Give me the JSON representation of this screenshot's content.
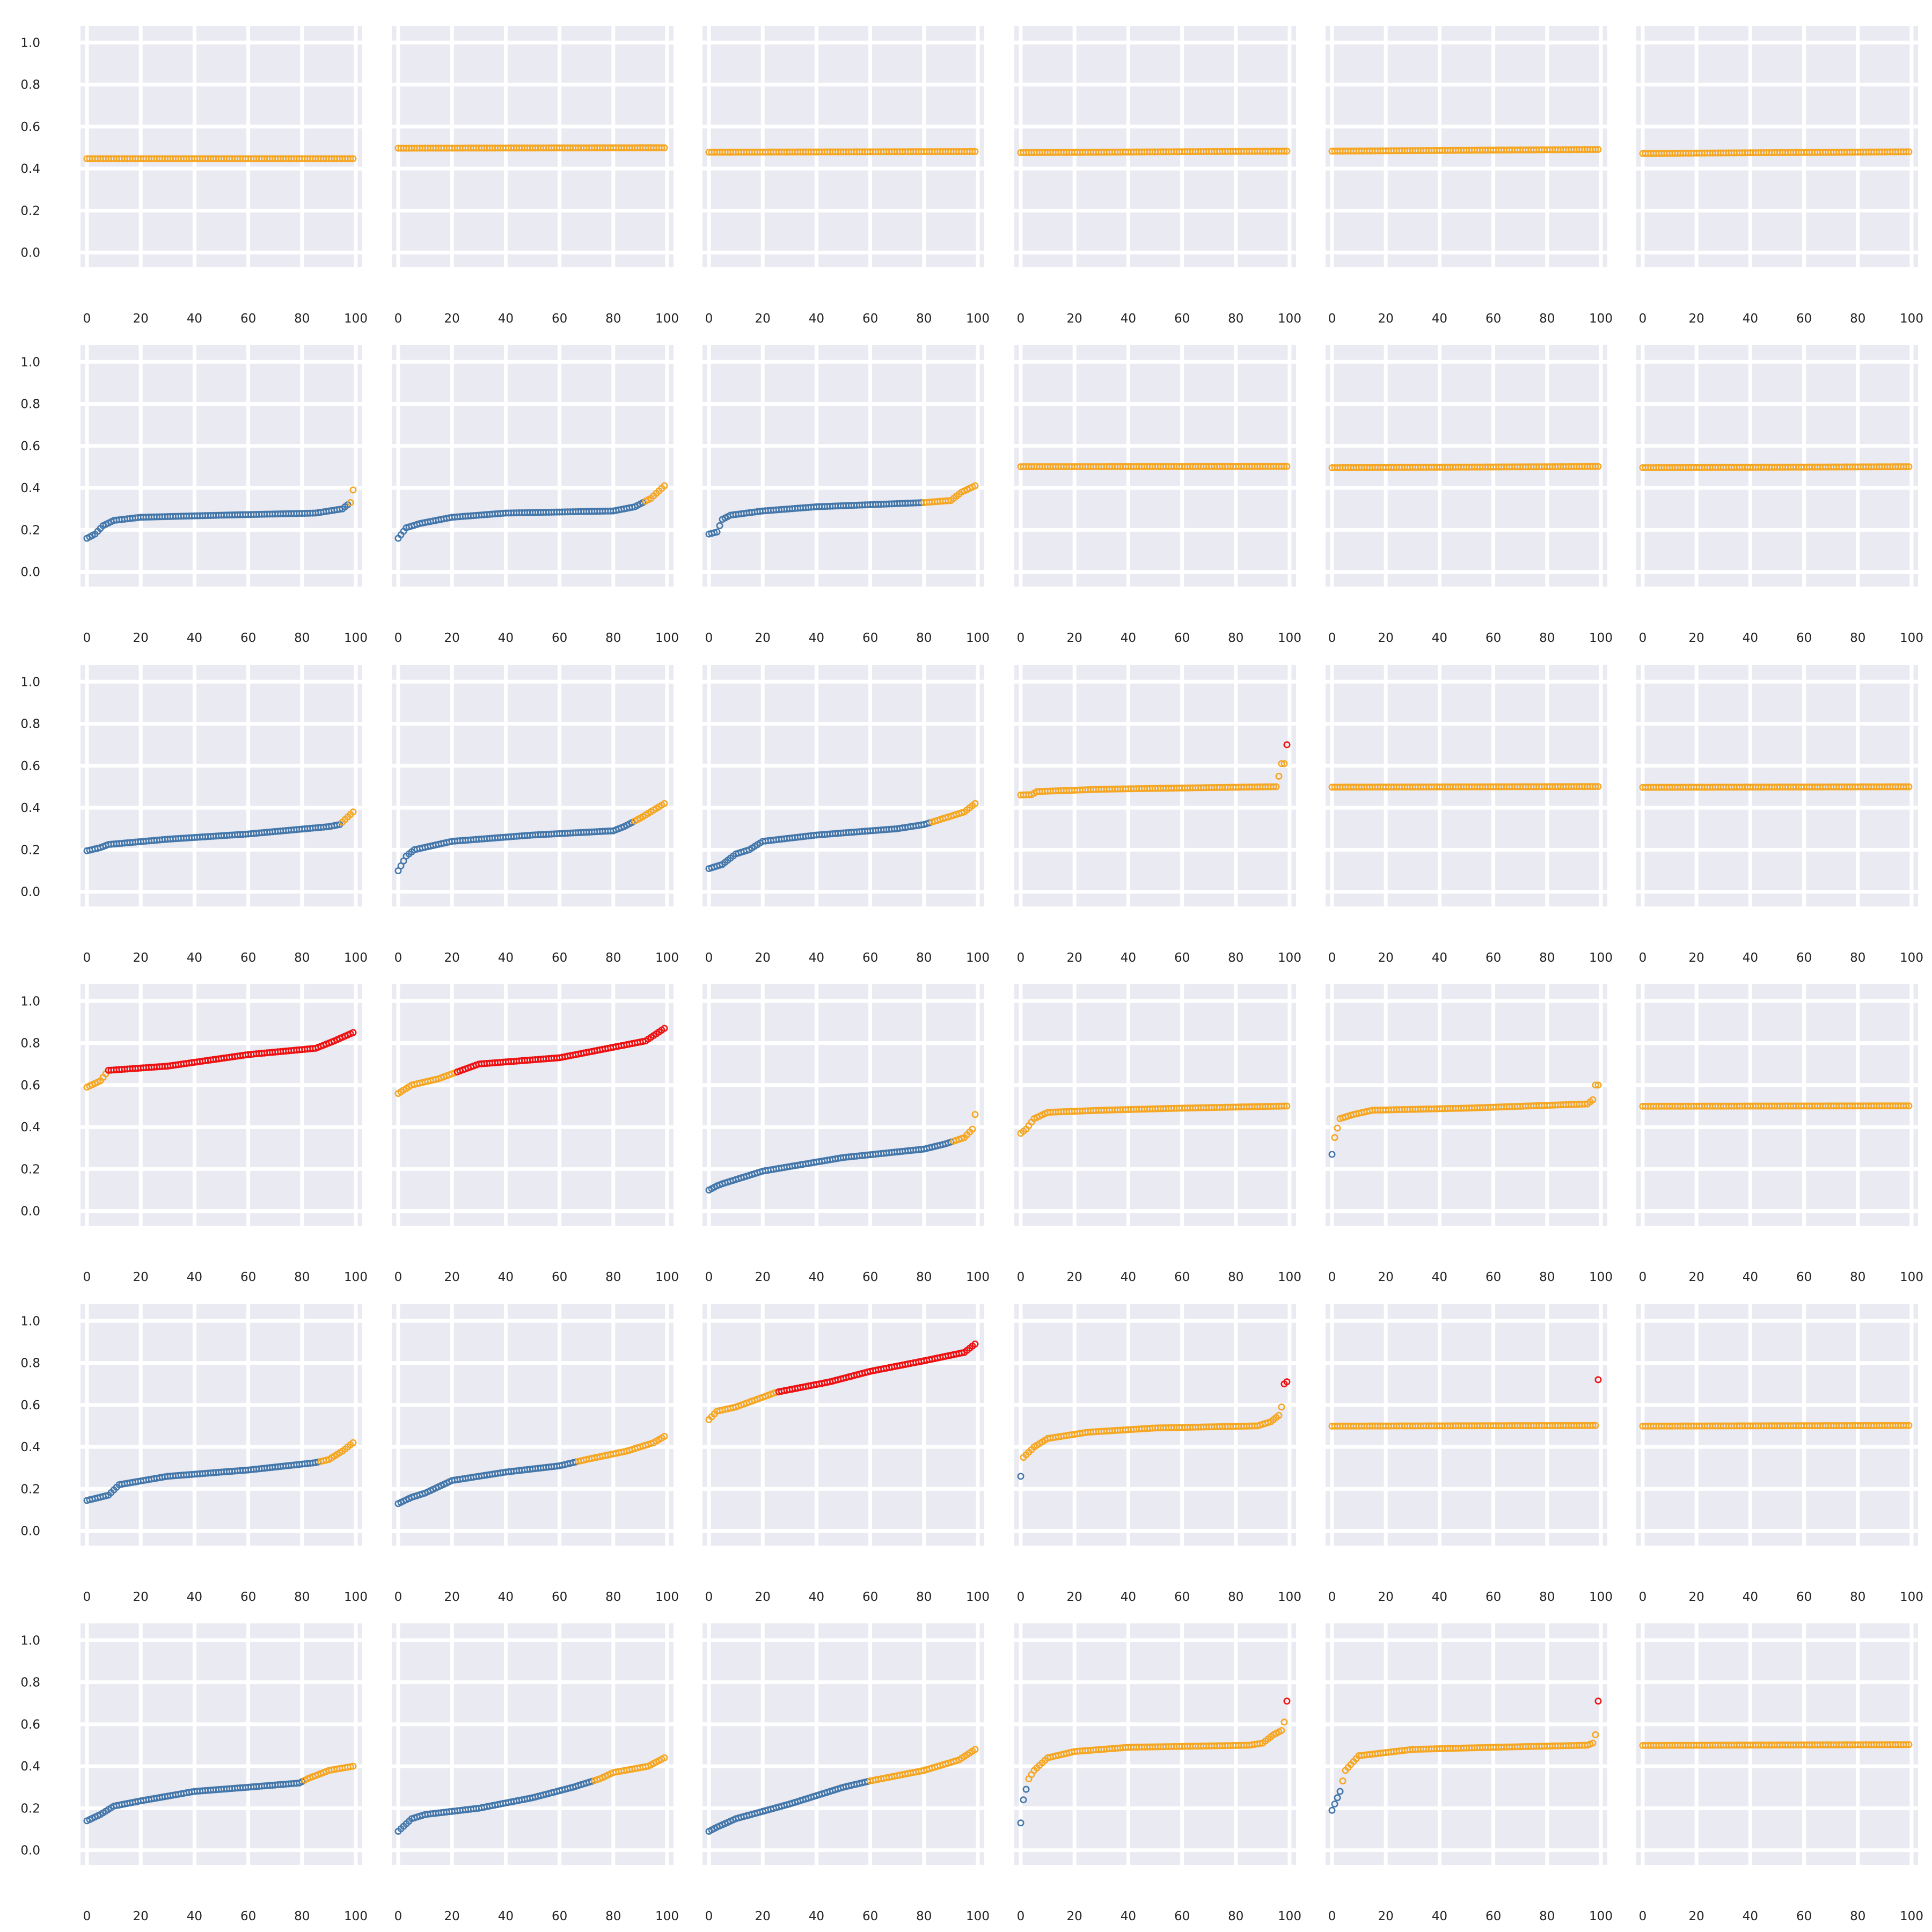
{
  "figure": {
    "rows": 6,
    "cols": 6,
    "colors": {
      "blue": "#4477aa",
      "orange": "#f5a623",
      "red": "#ee1111",
      "panel_bg": "#eaeaf2",
      "grid": "#ffffff"
    }
  },
  "chart_data": {
    "type": "scatter",
    "layout": "6x6 small multiples",
    "x_range": [
      0,
      100
    ],
    "y_range": [
      -0.07,
      1.08
    ],
    "x_ticks": [
      0,
      20,
      40,
      60,
      80,
      100
    ],
    "y_ticks": [
      0.0,
      0.2,
      0.4,
      0.6,
      0.8,
      1.0
    ],
    "y_tick_labels": [
      "0.0",
      "0.2",
      "0.4",
      "0.6",
      "0.8",
      "1.0"
    ],
    "x_tick_labels": [
      "0",
      "20",
      "40",
      "60",
      "80",
      "100"
    ],
    "grid": true,
    "n_points_per_panel": 100,
    "color_rule": "blue below 0.33, orange 0.33–0.66, red above 0.66",
    "panels": [
      {
        "row": 0,
        "col": 0,
        "curve": [
          [
            0,
            0.447
          ],
          [
            100,
            0.447
          ]
        ]
      },
      {
        "row": 0,
        "col": 1,
        "curve": [
          [
            0,
            0.497
          ],
          [
            100,
            0.499
          ]
        ]
      },
      {
        "row": 0,
        "col": 2,
        "curve": [
          [
            0,
            0.478
          ],
          [
            100,
            0.481
          ]
        ]
      },
      {
        "row": 0,
        "col": 3,
        "curve": [
          [
            0,
            0.476
          ],
          [
            100,
            0.483
          ]
        ]
      },
      {
        "row": 0,
        "col": 4,
        "curve": [
          [
            0,
            0.483
          ],
          [
            100,
            0.491
          ]
        ]
      },
      {
        "row": 0,
        "col": 5,
        "curve": [
          [
            0,
            0.472
          ],
          [
            100,
            0.48
          ]
        ]
      },
      {
        "row": 1,
        "col": 0,
        "curve": [
          [
            0,
            0.16
          ],
          [
            3,
            0.18
          ],
          [
            6,
            0.22
          ],
          [
            10,
            0.245
          ],
          [
            20,
            0.26
          ],
          [
            50,
            0.27
          ],
          [
            85,
            0.28
          ],
          [
            95,
            0.3
          ],
          [
            98,
            0.33
          ],
          [
            99,
            0.39
          ]
        ]
      },
      {
        "row": 1,
        "col": 1,
        "curve": [
          [
            0,
            0.16
          ],
          [
            3,
            0.21
          ],
          [
            8,
            0.23
          ],
          [
            20,
            0.26
          ],
          [
            40,
            0.28
          ],
          [
            80,
            0.29
          ],
          [
            88,
            0.31
          ],
          [
            94,
            0.35
          ],
          [
            99,
            0.41
          ]
        ]
      },
      {
        "row": 1,
        "col": 2,
        "curve": [
          [
            0,
            0.18
          ],
          [
            3,
            0.19
          ],
          [
            5,
            0.25
          ],
          [
            8,
            0.27
          ],
          [
            20,
            0.29
          ],
          [
            40,
            0.31
          ],
          [
            80,
            0.33
          ],
          [
            90,
            0.34
          ],
          [
            94,
            0.38
          ],
          [
            99,
            0.41
          ]
        ]
      },
      {
        "row": 1,
        "col": 3,
        "curve": [
          [
            0,
            0.501
          ],
          [
            100,
            0.502
          ]
        ]
      },
      {
        "row": 1,
        "col": 4,
        "curve": [
          [
            0,
            0.496
          ],
          [
            100,
            0.502
          ]
        ]
      },
      {
        "row": 1,
        "col": 5,
        "curve": [
          [
            0,
            0.496
          ],
          [
            100,
            0.501
          ]
        ]
      },
      {
        "row": 2,
        "col": 0,
        "curve": [
          [
            0,
            0.195
          ],
          [
            5,
            0.21
          ],
          [
            8,
            0.225
          ],
          [
            30,
            0.25
          ],
          [
            60,
            0.275
          ],
          [
            90,
            0.31
          ],
          [
            94,
            0.32
          ],
          [
            99,
            0.38
          ]
        ]
      },
      {
        "row": 2,
        "col": 1,
        "curve": [
          [
            0,
            0.1
          ],
          [
            3,
            0.17
          ],
          [
            6,
            0.2
          ],
          [
            20,
            0.24
          ],
          [
            50,
            0.27
          ],
          [
            80,
            0.29
          ],
          [
            84,
            0.31
          ],
          [
            90,
            0.35
          ],
          [
            99,
            0.42
          ]
        ]
      },
      {
        "row": 2,
        "col": 2,
        "curve": [
          [
            0,
            0.11
          ],
          [
            5,
            0.13
          ],
          [
            10,
            0.18
          ],
          [
            15,
            0.2
          ],
          [
            20,
            0.24
          ],
          [
            40,
            0.27
          ],
          [
            70,
            0.3
          ],
          [
            80,
            0.32
          ],
          [
            85,
            0.34
          ],
          [
            95,
            0.38
          ],
          [
            99,
            0.42
          ]
        ]
      },
      {
        "row": 2,
        "col": 3,
        "curve": [
          [
            0,
            0.461
          ],
          [
            4,
            0.462
          ],
          [
            6,
            0.477
          ],
          [
            30,
            0.488
          ],
          [
            60,
            0.494
          ],
          [
            94,
            0.5
          ],
          [
            95,
            0.5
          ],
          [
            96,
            0.55
          ],
          [
            97,
            0.61
          ],
          [
            98,
            0.61
          ],
          [
            99,
            0.7
          ]
        ]
      },
      {
        "row": 2,
        "col": 4,
        "curve": [
          [
            0,
            0.498
          ],
          [
            100,
            0.501
          ]
        ]
      },
      {
        "row": 2,
        "col": 5,
        "curve": [
          [
            0,
            0.497
          ],
          [
            100,
            0.5
          ]
        ]
      },
      {
        "row": 3,
        "col": 0,
        "curve": [
          [
            0,
            0.59
          ],
          [
            5,
            0.62
          ],
          [
            8,
            0.67
          ],
          [
            30,
            0.69
          ],
          [
            60,
            0.745
          ],
          [
            85,
            0.775
          ],
          [
            92,
            0.81
          ],
          [
            99,
            0.85
          ]
        ]
      },
      {
        "row": 3,
        "col": 1,
        "curve": [
          [
            0,
            0.56
          ],
          [
            5,
            0.6
          ],
          [
            15,
            0.63
          ],
          [
            30,
            0.7
          ],
          [
            60,
            0.73
          ],
          [
            80,
            0.78
          ],
          [
            92,
            0.81
          ],
          [
            99,
            0.87
          ]
        ]
      },
      {
        "row": 3,
        "col": 2,
        "curve": [
          [
            0,
            0.1
          ],
          [
            3,
            0.12
          ],
          [
            5,
            0.13
          ],
          [
            20,
            0.19
          ],
          [
            50,
            0.255
          ],
          [
            80,
            0.295
          ],
          [
            88,
            0.32
          ],
          [
            95,
            0.35
          ],
          [
            98,
            0.39
          ],
          [
            99,
            0.46
          ]
        ]
      },
      {
        "row": 3,
        "col": 3,
        "curve": [
          [
            0,
            0.37
          ],
          [
            2,
            0.39
          ],
          [
            5,
            0.44
          ],
          [
            10,
            0.47
          ],
          [
            30,
            0.48
          ],
          [
            60,
            0.49
          ],
          [
            99,
            0.5
          ]
        ]
      },
      {
        "row": 3,
        "col": 4,
        "curve": [
          [
            0,
            0.27
          ],
          [
            1,
            0.35
          ],
          [
            3,
            0.44
          ],
          [
            8,
            0.46
          ],
          [
            15,
            0.48
          ],
          [
            50,
            0.49
          ],
          [
            95,
            0.51
          ],
          [
            97,
            0.53
          ],
          [
            98,
            0.6
          ],
          [
            99,
            0.6
          ]
        ]
      },
      {
        "row": 3,
        "col": 5,
        "curve": [
          [
            0,
            0.499
          ],
          [
            100,
            0.501
          ]
        ]
      },
      {
        "row": 4,
        "col": 0,
        "curve": [
          [
            0,
            0.145
          ],
          [
            8,
            0.17
          ],
          [
            12,
            0.22
          ],
          [
            30,
            0.26
          ],
          [
            60,
            0.29
          ],
          [
            85,
            0.325
          ],
          [
            90,
            0.34
          ],
          [
            95,
            0.38
          ],
          [
            99,
            0.42
          ]
        ]
      },
      {
        "row": 4,
        "col": 1,
        "curve": [
          [
            0,
            0.13
          ],
          [
            5,
            0.16
          ],
          [
            10,
            0.18
          ],
          [
            20,
            0.24
          ],
          [
            40,
            0.28
          ],
          [
            60,
            0.31
          ],
          [
            70,
            0.34
          ],
          [
            85,
            0.38
          ],
          [
            95,
            0.42
          ],
          [
            99,
            0.45
          ]
        ]
      },
      {
        "row": 4,
        "col": 2,
        "curve": [
          [
            0,
            0.53
          ],
          [
            3,
            0.57
          ],
          [
            10,
            0.59
          ],
          [
            25,
            0.66
          ],
          [
            45,
            0.71
          ],
          [
            60,
            0.76
          ],
          [
            80,
            0.81
          ],
          [
            95,
            0.85
          ],
          [
            99,
            0.89
          ]
        ]
      },
      {
        "row": 4,
        "col": 3,
        "curve": [
          [
            0,
            0.26
          ],
          [
            1,
            0.35
          ],
          [
            5,
            0.4
          ],
          [
            10,
            0.44
          ],
          [
            25,
            0.47
          ],
          [
            50,
            0.49
          ],
          [
            88,
            0.5
          ],
          [
            93,
            0.52
          ],
          [
            96,
            0.55
          ],
          [
            97,
            0.59
          ],
          [
            98,
            0.7
          ],
          [
            99,
            0.71
          ]
        ]
      },
      {
        "row": 4,
        "col": 4,
        "curve": [
          [
            0,
            0.499
          ],
          [
            98,
            0.502
          ],
          [
            99,
            0.72
          ]
        ]
      },
      {
        "row": 4,
        "col": 5,
        "curve": [
          [
            0,
            0.499
          ],
          [
            100,
            0.502
          ]
        ]
      },
      {
        "row": 5,
        "col": 0,
        "curve": [
          [
            0,
            0.14
          ],
          [
            5,
            0.17
          ],
          [
            10,
            0.21
          ],
          [
            20,
            0.235
          ],
          [
            40,
            0.28
          ],
          [
            60,
            0.3
          ],
          [
            79,
            0.32
          ],
          [
            82,
            0.34
          ],
          [
            90,
            0.38
          ],
          [
            99,
            0.4
          ]
        ]
      },
      {
        "row": 5,
        "col": 1,
        "curve": [
          [
            0,
            0.09
          ],
          [
            5,
            0.15
          ],
          [
            10,
            0.17
          ],
          [
            30,
            0.2
          ],
          [
            50,
            0.25
          ],
          [
            65,
            0.3
          ],
          [
            75,
            0.34
          ],
          [
            80,
            0.37
          ],
          [
            93,
            0.4
          ],
          [
            99,
            0.44
          ]
        ]
      },
      {
        "row": 5,
        "col": 2,
        "curve": [
          [
            0,
            0.09
          ],
          [
            3,
            0.11
          ],
          [
            10,
            0.15
          ],
          [
            30,
            0.22
          ],
          [
            50,
            0.3
          ],
          [
            60,
            0.33
          ],
          [
            80,
            0.38
          ],
          [
            93,
            0.43
          ],
          [
            99,
            0.48
          ]
        ]
      },
      {
        "row": 5,
        "col": 3,
        "curve": [
          [
            0,
            0.13
          ],
          [
            1,
            0.24
          ],
          [
            3,
            0.34
          ],
          [
            5,
            0.38
          ],
          [
            10,
            0.44
          ],
          [
            20,
            0.47
          ],
          [
            40,
            0.49
          ],
          [
            85,
            0.5
          ],
          [
            90,
            0.51
          ],
          [
            94,
            0.55
          ],
          [
            97,
            0.57
          ],
          [
            98,
            0.61
          ],
          [
            99,
            0.71
          ]
        ]
      },
      {
        "row": 5,
        "col": 4,
        "curve": [
          [
            0,
            0.19
          ],
          [
            1,
            0.22
          ],
          [
            3,
            0.28
          ],
          [
            5,
            0.38
          ],
          [
            10,
            0.45
          ],
          [
            30,
            0.48
          ],
          [
            60,
            0.49
          ],
          [
            95,
            0.5
          ],
          [
            97,
            0.51
          ],
          [
            98,
            0.55
          ],
          [
            99,
            0.71
          ]
        ]
      },
      {
        "row": 5,
        "col": 5,
        "curve": [
          [
            0,
            0.499
          ],
          [
            100,
            0.503
          ]
        ]
      }
    ]
  }
}
